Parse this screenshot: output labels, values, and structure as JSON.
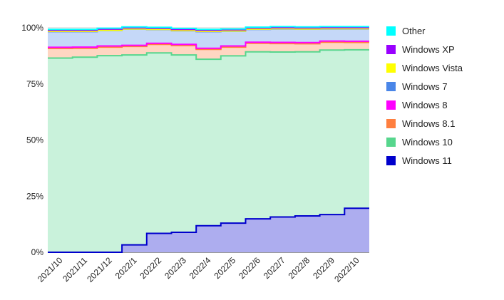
{
  "chart_data": {
    "type": "area",
    "stacked": true,
    "step": true,
    "categories": [
      "2021/10",
      "2021/11",
      "2021/12",
      "2022/1",
      "2022/2",
      "2022/3",
      "2022/4",
      "2022/5",
      "2022/6",
      "2022/7",
      "2022/8",
      "2022/9",
      "2022/10"
    ],
    "series": [
      {
        "name": "Windows 11",
        "color": "#0000cc",
        "values": [
          0,
          0,
          0,
          3.3,
          8.4,
          8.9,
          11.8,
          13.0,
          14.9,
          15.7,
          16.2,
          16.8,
          19.6
        ]
      },
      {
        "name": "Windows 10",
        "color": "#57d68d",
        "values": [
          86.5,
          86.9,
          87.6,
          84.6,
          80.4,
          79.0,
          74.2,
          74.5,
          74.4,
          73.5,
          73.1,
          73.3,
          70.6
        ]
      },
      {
        "name": "Windows 8.1",
        "color": "#ff7f3f",
        "values": [
          4.3,
          4.0,
          3.8,
          3.8,
          3.8,
          4.2,
          4.4,
          3.9,
          3.8,
          3.8,
          3.6,
          3.5,
          3.3
        ]
      },
      {
        "name": "Windows 8",
        "color": "#ff00ff",
        "values": [
          0.5,
          0.5,
          0.5,
          0.5,
          0.5,
          0.5,
          0.5,
          0.5,
          0.5,
          0.5,
          0.5,
          0.5,
          0.5
        ]
      },
      {
        "name": "Windows 7",
        "color": "#4a86e8",
        "values": [
          7.0,
          6.9,
          6.9,
          7.2,
          6.1,
          6.1,
          7.4,
          6.6,
          5.7,
          6.0,
          6.0,
          5.4,
          5.5
        ]
      },
      {
        "name": "Windows Vista",
        "color": "#ffff00",
        "values": [
          0.1,
          0.1,
          0.1,
          0.1,
          0.1,
          0.1,
          0.1,
          0.1,
          0.1,
          0.1,
          0.1,
          0.1,
          0.1
        ]
      },
      {
        "name": "Windows XP",
        "color": "#9900ff",
        "values": [
          0.5,
          0.5,
          0.5,
          0.5,
          0.5,
          0.5,
          0.5,
          0.5,
          0.5,
          0.5,
          0.5,
          0.5,
          0.5
        ]
      },
      {
        "name": "Other",
        "color": "#00ffff",
        "values": [
          0.4,
          0.4,
          0.4,
          0.4,
          0.4,
          0.4,
          0.4,
          0.4,
          0.4,
          0.4,
          0.4,
          0.4,
          0.4
        ]
      }
    ],
    "ylim": [
      0,
      100
    ],
    "yticks": [
      "0%",
      "25%",
      "50%",
      "75%",
      "100%"
    ],
    "ytick_values": [
      0,
      25,
      50,
      75,
      100
    ],
    "legend": [
      "Other",
      "Windows XP",
      "Windows Vista",
      "Windows 7",
      "Windows 8",
      "Windows 8.1",
      "Windows 10",
      "Windows 11"
    ],
    "legend_position": "right",
    "grid": true,
    "title": "",
    "xlabel": "",
    "ylabel": ""
  }
}
